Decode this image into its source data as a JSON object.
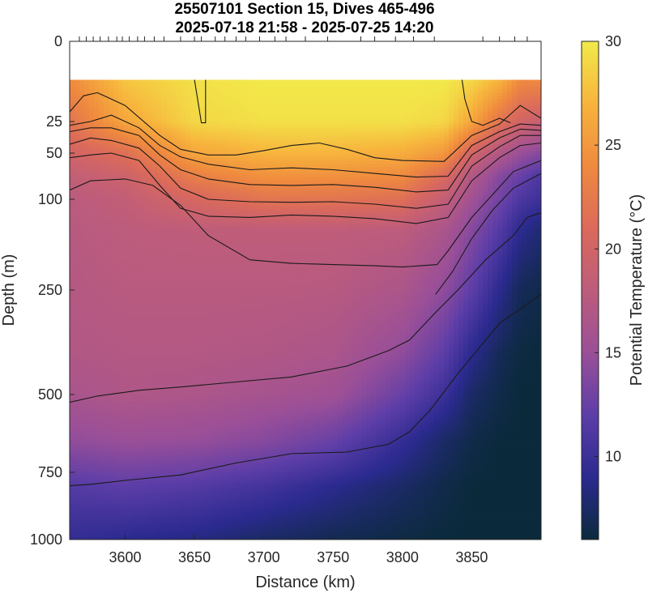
{
  "chart_data": {
    "type": "heatmap",
    "title": [
      "25507101 Section 15, Dives 465-496",
      "2025-07-18 21:58 - 2025-07-25 14:20"
    ],
    "xlabel": "Distance (km)",
    "ylabel": "Depth (m)",
    "colorbar_label": "Potential Temperature (°C)",
    "xlim": [
      3560,
      3900
    ],
    "x_ticks": [
      3600,
      3650,
      3700,
      3750,
      3800,
      3850
    ],
    "y_ticks": [
      0,
      25,
      50,
      100,
      250,
      500,
      750,
      1000
    ],
    "y_scale": "sqrt",
    "ylim": [
      0,
      1000
    ],
    "clim": [
      6,
      30
    ],
    "colorbar_ticks": [
      10,
      15,
      20,
      25,
      30
    ],
    "data_top_depth": 12,
    "grid": false,
    "colormap": [
      "#0b2a3c",
      "#2b2a8f",
      "#5d3ea8",
      "#9a4f98",
      "#bd5c7c",
      "#db6a5b",
      "#ef8a3e",
      "#f7b43d",
      "#f2e94a"
    ],
    "dive_positions_km": [
      3567,
      3572,
      3577,
      3582,
      3588,
      3594,
      3598,
      3603,
      3609,
      3614,
      3621,
      3628,
      3640,
      3650,
      3655,
      3665,
      3672,
      3680,
      3687,
      3697,
      3708,
      3716,
      3730,
      3746,
      3770,
      3780,
      3795,
      3808,
      3823,
      3858,
      3870,
      3881,
      3890
    ],
    "temperature_profiles": {
      "x_km": [
        3560,
        3600,
        3650,
        3700,
        3750,
        3800,
        3830,
        3850,
        3870,
        3885,
        3900
      ],
      "depth_m": [
        12,
        25,
        50,
        75,
        100,
        150,
        250,
        400,
        500,
        650,
        800,
        1000
      ],
      "t_at_12m": [
        24,
        28,
        29.5,
        30,
        30,
        30,
        30,
        29,
        27,
        24,
        24
      ],
      "t_at_25m": [
        22,
        26,
        29,
        29.5,
        29.5,
        29.5,
        29,
        26,
        22,
        20,
        19
      ],
      "t_at_50m": [
        20,
        21.5,
        26,
        27,
        27,
        26.5,
        25,
        20,
        17,
        15,
        14
      ],
      "t_at_75m": [
        18.5,
        19.5,
        23,
        24.5,
        24.5,
        24,
        21,
        17,
        14,
        12.5,
        11
      ],
      "t_at_100m": [
        17.8,
        18.5,
        20.5,
        22,
        22,
        21.5,
        18.5,
        15.5,
        13,
        11,
        10
      ],
      "t_at_150m": [
        17.5,
        18,
        18.2,
        18.2,
        18.2,
        18,
        16.5,
        14,
        11.5,
        9,
        8
      ],
      "t_at_250m": [
        17.3,
        17.6,
        17.6,
        17.6,
        17.5,
        16.5,
        14.5,
        12,
        9,
        7,
        6.5
      ],
      "t_at_400m": [
        17,
        17.2,
        17.2,
        17,
        16.5,
        14.5,
        12,
        9,
        7,
        6.2,
        6
      ],
      "t_at_500m": [
        16.2,
        16.8,
        16.6,
        16,
        15.5,
        12.5,
        10,
        7.5,
        6.5,
        6,
        6
      ],
      "t_at_650m": [
        14.5,
        15,
        14.8,
        14,
        12.5,
        9.5,
        7.5,
        6.5,
        6,
        6,
        6
      ],
      "t_at_800m": [
        11.5,
        12,
        11.5,
        10.5,
        9,
        7.5,
        6.5,
        6,
        6,
        6,
        6
      ],
      "t_at_1000m": [
        9.5,
        9,
        8.5,
        7.5,
        6.8,
        6.3,
        6,
        6,
        6,
        6,
        6
      ]
    },
    "contours": [
      {
        "level": 30,
        "x": [
          3650,
          3653,
          3655,
          3658,
          3658
        ],
        "depth": [
          12,
          20,
          26,
          26,
          12
        ]
      },
      {
        "level": 30,
        "x": [
          3843,
          3845,
          3850,
          3858,
          3870,
          3878
        ],
        "depth": [
          12,
          18,
          25,
          28,
          24,
          26
        ]
      },
      {
        "level": 29,
        "x": [
          3560,
          3570,
          3580,
          3600,
          3625,
          3640,
          3660,
          3680,
          3700,
          3720,
          3740,
          3760,
          3780,
          3800,
          3830,
          3850,
          3870,
          3885,
          3900
        ],
        "depth": [
          22,
          17,
          16,
          20,
          36,
          47,
          52,
          52,
          48,
          44,
          42,
          47,
          55,
          58,
          59,
          36,
          27,
          20,
          24
        ]
      },
      {
        "level": 28,
        "x": [
          3560,
          3575,
          3590,
          3610,
          3625,
          3640,
          3660,
          3690,
          3720,
          3750,
          3780,
          3810,
          3833,
          3850,
          3870,
          3885,
          3900
        ],
        "depth": [
          28,
          25,
          23,
          30,
          44,
          54,
          62,
          68,
          66,
          68,
          72,
          76,
          75,
          44,
          33,
          27,
          28
        ]
      },
      {
        "level": 27,
        "x": [
          3560,
          3575,
          3590,
          3610,
          3625,
          3640,
          3660,
          3690,
          3720,
          3750,
          3780,
          3810,
          3833,
          3850,
          3870,
          3885,
          3900
        ],
        "depth": [
          33,
          30,
          30,
          36,
          52,
          68,
          78,
          84,
          85,
          84,
          87,
          92,
          90,
          52,
          38,
          31,
          32
        ]
      },
      {
        "level": 26,
        "x": [
          3560,
          3575,
          3590,
          3610,
          3625,
          3640,
          3660,
          3690,
          3720,
          3750,
          3780,
          3810,
          3833,
          3850,
          3870,
          3885,
          3900
        ],
        "depth": [
          43,
          38,
          40,
          46,
          64,
          88,
          100,
          104,
          105,
          104,
          108,
          115,
          108,
          64,
          45,
          36,
          36
        ]
      },
      {
        "level": 25,
        "x": [
          3560,
          3575,
          3590,
          3610,
          3625,
          3640,
          3660,
          3690,
          3720,
          3750,
          3780,
          3810,
          3833,
          3850,
          3870,
          3885,
          3900
        ],
        "depth": [
          55,
          52,
          50,
          58,
          85,
          115,
          128,
          130,
          126,
          128,
          132,
          140,
          130,
          80,
          55,
          44,
          42
        ]
      },
      {
        "level": 20,
        "x": [
          3560,
          3575,
          3600,
          3620,
          3640,
          3660,
          3690,
          3720,
          3750,
          3780,
          3800,
          3825,
          3833,
          3850,
          3865,
          3880,
          3900
        ],
        "depth": [
          90,
          80,
          78,
          85,
          110,
          160,
          200,
          206,
          208,
          210,
          212,
          208,
          185,
          130,
          95,
          70,
          58
        ]
      },
      {
        "level": 18,
        "x": [
          3824,
          3836,
          3850,
          3865,
          3880,
          3900
        ],
        "depth": [
          260,
          220,
          165,
          118,
          88,
          72
        ]
      },
      {
        "level": 15,
        "x": [
          3560,
          3580,
          3610,
          3640,
          3680,
          3720,
          3760,
          3790,
          3805,
          3825,
          3840,
          3860,
          3880,
          3890,
          3900
        ],
        "depth": [
          525,
          505,
          490,
          482,
          470,
          458,
          432,
          395,
          370,
          300,
          250,
          200,
          160,
          130,
          122
        ]
      },
      {
        "level": 12,
        "x": [
          3560,
          3575,
          3600,
          3640,
          3680,
          3720,
          3760,
          3790,
          3805,
          3820,
          3840,
          3870,
          3900
        ],
        "depth": [
          800,
          795,
          780,
          760,
          720,
          690,
          685,
          660,
          620,
          550,
          450,
          330,
          260
        ]
      }
    ]
  }
}
